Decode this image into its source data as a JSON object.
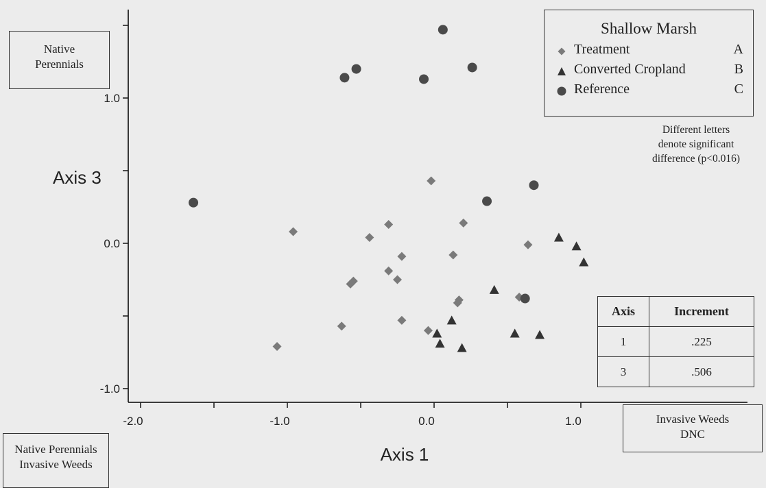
{
  "chart_data": {
    "type": "scatter",
    "xlabel": "Axis 1",
    "ylabel": "Axis 3",
    "xlim": [
      -2.05,
      1.25
    ],
    "ylim": [
      -1.1,
      1.6
    ],
    "xticks": [
      "-2.0",
      "-1.0",
      "0.0",
      "1.0"
    ],
    "xtick_values": [
      -2.0,
      -1.0,
      0.0,
      1.0
    ],
    "yticks": [
      "-1.0",
      "0.0",
      "1.0"
    ],
    "ytick_values": [
      -1.0,
      0.0,
      1.0
    ],
    "grid": false,
    "legend": {
      "title": "Shallow Marsh",
      "placement": "top-right",
      "entries": [
        {
          "label": "Treatment",
          "letter": "A",
          "marker": "diamond"
        },
        {
          "label": "Converted Cropland",
          "letter": "B",
          "marker": "triangle"
        },
        {
          "label": "Reference",
          "letter": "C",
          "marker": "circle"
        }
      ]
    },
    "series": [
      {
        "name": "Treatment",
        "marker": "diamond",
        "points": [
          [
            -0.02,
            0.43
          ],
          [
            -0.96,
            0.08
          ],
          [
            -0.44,
            0.04
          ],
          [
            -0.31,
            0.13
          ],
          [
            0.2,
            0.14
          ],
          [
            -0.22,
            -0.09
          ],
          [
            0.13,
            -0.08
          ],
          [
            0.64,
            -0.01
          ],
          [
            -0.31,
            -0.19
          ],
          [
            -0.25,
            -0.25
          ],
          [
            -0.55,
            -0.26
          ],
          [
            -0.57,
            -0.28
          ],
          [
            0.17,
            -0.39
          ],
          [
            0.16,
            -0.41
          ],
          [
            0.58,
            -0.37
          ],
          [
            -0.63,
            -0.57
          ],
          [
            -0.22,
            -0.53
          ],
          [
            -0.04,
            -0.6
          ],
          [
            -1.07,
            -0.71
          ]
        ]
      },
      {
        "name": "Converted Cropland",
        "marker": "triangle",
        "points": [
          [
            0.85,
            0.04
          ],
          [
            0.97,
            -0.02
          ],
          [
            1.02,
            -0.13
          ],
          [
            0.41,
            -0.32
          ],
          [
            0.12,
            -0.53
          ],
          [
            0.02,
            -0.62
          ],
          [
            0.04,
            -0.69
          ],
          [
            0.19,
            -0.72
          ],
          [
            0.55,
            -0.62
          ],
          [
            0.72,
            -0.63
          ]
        ]
      },
      {
        "name": "Reference",
        "marker": "circle",
        "points": [
          [
            0.06,
            1.47
          ],
          [
            -0.53,
            1.2
          ],
          [
            0.26,
            1.21
          ],
          [
            -0.61,
            1.14
          ],
          [
            -0.07,
            1.13
          ],
          [
            0.68,
            0.4
          ],
          [
            0.36,
            0.29
          ],
          [
            -1.64,
            0.28
          ],
          [
            0.62,
            -0.38
          ]
        ]
      }
    ],
    "annotations": {
      "top_left": [
        "Native",
        "Perennials"
      ],
      "bottom_left": [
        "Native Perennials",
        "Invasive Weeds"
      ],
      "bottom_right": [
        "Invasive Weeds",
        "DNC"
      ],
      "note": [
        "Different letters",
        "denote significant",
        "difference (p<0.016)"
      ]
    },
    "increment_table": {
      "headers": [
        "Axis",
        "Increment"
      ],
      "rows": [
        [
          "1",
          ".225"
        ],
        [
          "3",
          ".506"
        ]
      ]
    }
  },
  "colors": {
    "background": "#ececec",
    "treatment": "#7a7a7a",
    "cropland": "#333333",
    "reference": "#4a4a4a",
    "axis": "#222222"
  }
}
